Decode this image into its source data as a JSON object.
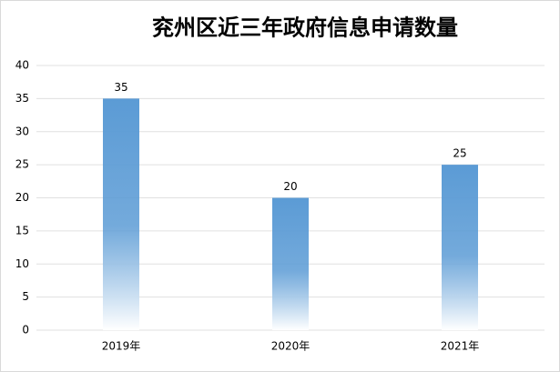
{
  "chart_data": {
    "type": "bar",
    "title": "兖州区近三年政府信息申请数量",
    "categories": [
      "2019年",
      "2020年",
      "2021年"
    ],
    "values": [
      35,
      20,
      25
    ],
    "color": "#5b9bd5",
    "ylim": [
      0,
      40
    ],
    "yticks": [
      0,
      5,
      10,
      15,
      20,
      25,
      30,
      35,
      40
    ],
    "grid": true
  }
}
